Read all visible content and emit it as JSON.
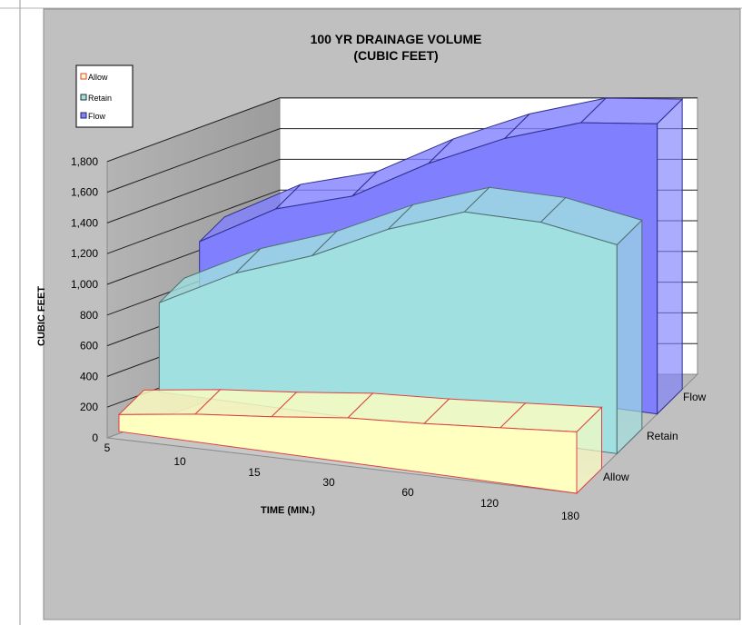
{
  "chart_data": {
    "type": "area",
    "title_line1": "100 YR DRAINAGE VOLUME",
    "title_line2": "(CUBIC FEET)",
    "xlabel": "TIME (MIN.)",
    "ylabel": "CUBIC FEET",
    "categories": [
      "5",
      "10",
      "15",
      "30",
      "60",
      "120",
      "180"
    ],
    "yticks": [
      "0",
      "200",
      "400",
      "600",
      "800",
      "1,000",
      "1,200",
      "1,400",
      "1,600",
      "1,800"
    ],
    "ylim": [
      0,
      1800
    ],
    "series": [
      {
        "name": "Allow",
        "values": [
          110,
          180,
          230,
          290,
          320,
          360,
          400
        ],
        "color": "#FFFFC0",
        "edge": "#E04040"
      },
      {
        "name": "Retain",
        "values": [
          580,
          840,
          1020,
          1260,
          1440,
          1440,
          1360
        ],
        "color": "#A0E0E0",
        "edge": "#507070"
      },
      {
        "name": "Flow",
        "values": [
          720,
          1000,
          1150,
          1430,
          1660,
          1830,
          1890
        ],
        "color": "#8080FF",
        "edge": "#303090"
      }
    ],
    "legend_position": "top-left",
    "grid": true
  }
}
